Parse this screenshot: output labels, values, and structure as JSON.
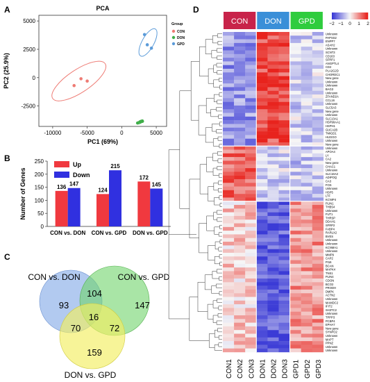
{
  "panels": {
    "a": "A",
    "b": "B",
    "c": "C",
    "d": "D"
  },
  "chart_data": [
    {
      "type": "scatter",
      "title": "PCA",
      "xlabel": "PC1 (69%)",
      "ylabel": "PC2 (25.9%)",
      "xlim": [
        -12000,
        6500
      ],
      "ylim": [
        -4300,
        5500
      ],
      "x_ticks": [
        -10000,
        -5000,
        0,
        5000
      ],
      "y_ticks": [
        5000,
        2500,
        0,
        -2500
      ],
      "x_tick_labels": [
        "-10000",
        "-5000",
        "0",
        "5000"
      ],
      "y_tick_labels": [
        "5000",
        "2500",
        "0",
        "-2500"
      ],
      "legend_title": "Group",
      "legend_position": "right",
      "series": [
        {
          "name": "CON",
          "color": "#ee7b74",
          "points": [
            [
              -6900,
              -700
            ],
            [
              -5900,
              -100
            ],
            [
              -5000,
              -300
            ]
          ],
          "ellipse_center": [
            -6200,
            -300
          ],
          "ellipse_semi_axes": [
            4100,
            1050
          ],
          "ellipse_angle_deg": 22
        },
        {
          "name": "DON",
          "color": "#3fae49",
          "points": [
            [
              2300,
              -4000
            ],
            [
              2700,
              -3900
            ],
            [
              3000,
              -3850
            ]
          ],
          "ellipse_center": [
            2700,
            -3900
          ],
          "ellipse_semi_axes": [
            450,
            130
          ],
          "ellipse_angle_deg": 20
        },
        {
          "name": "GPD",
          "color": "#5b9bd9",
          "points": [
            [
              3300,
              3800
            ],
            [
              3700,
              2900
            ],
            [
              4300,
              2600
            ]
          ],
          "ellipse_center": [
            3800,
            3100
          ],
          "ellipse_semi_axes": [
            1600,
            650
          ],
          "ellipse_angle_deg": 48
        }
      ]
    },
    {
      "type": "bar",
      "ylabel": "Number of Genes",
      "ylim": [
        0,
        250
      ],
      "categories": [
        "CON vs. DON",
        "CON vs. GPD",
        "DON vs. GPD"
      ],
      "legend_position": "top-left",
      "series": [
        {
          "name": "Up",
          "color": "#f0393f",
          "values": [
            136,
            124,
            172
          ]
        },
        {
          "name": "Down",
          "color": "#3030e0",
          "values": [
            147,
            215,
            145
          ]
        }
      ],
      "data_labels": [
        [
          "136",
          "147"
        ],
        [
          "124",
          "215"
        ],
        [
          "172",
          "145"
        ]
      ]
    },
    {
      "type": "venn",
      "sets": [
        {
          "name": "CON vs. DON",
          "color": "#7ea6e6"
        },
        {
          "name": "CON vs. GPD",
          "color": "#6fd46a"
        },
        {
          "name": "DON vs. GPD",
          "color": "#f2ee61"
        }
      ],
      "regions": {
        "only_con_don": 93,
        "only_con_gpd": 147,
        "only_don_gpd": 159,
        "con_don_and_con_gpd": 104,
        "con_don_and_don_gpd": 70,
        "con_gpd_and_don_gpd": 72,
        "all_three": 16
      },
      "region_labels": {
        "only_con_don": "93",
        "only_con_gpd": "147",
        "only_don_gpd": "159",
        "con_don_and_con_gpd": "104",
        "con_don_and_don_gpd": "70",
        "con_gpd_and_don_gpd": "72",
        "all_three": "16"
      }
    },
    {
      "type": "heatmap",
      "groups": [
        {
          "name": "CON",
          "color": "#c8234a"
        },
        {
          "name": "DON",
          "color": "#3a8fd8"
        },
        {
          "name": "GPD",
          "color": "#2fcc3e"
        }
      ],
      "columns": [
        "CON1",
        "CON2",
        "CON3",
        "DON1",
        "DON2",
        "DON3",
        "GPD1",
        "GPD2",
        "GPD3"
      ],
      "color_scale": {
        "min": -2,
        "max": 2,
        "low": "#3b3bd6",
        "mid": "#f6f6f6",
        "high": "#e8231d",
        "tick_labels": [
          "−2",
          "−1",
          "0",
          "1",
          "2"
        ]
      },
      "row_blocks": [
        {
          "rows": 31,
          "values": [
            -1.0,
            -1.0,
            -1.0,
            1.6,
            1.6,
            1.6,
            -0.4,
            -0.4,
            -0.4
          ]
        },
        {
          "rows": 15,
          "values": [
            1.3,
            1.3,
            1.3,
            -0.4,
            -0.4,
            -0.4,
            -0.5,
            -0.5,
            -0.5
          ]
        },
        {
          "rows": 41,
          "values": [
            0.4,
            0.4,
            0.4,
            -1.6,
            -1.6,
            -1.6,
            0.9,
            0.9,
            0.9
          ]
        }
      ],
      "row_labels": [
        "Unknown",
        "PAPSS2",
        "ENPP7",
        "ASAH2",
        "Unknown",
        "SCNT3",
        "CD163",
        "SFRP1",
        "ANGPTL4",
        "CD2",
        "PLA2G2D",
        "CHORDC1",
        "New gene",
        "Unknown",
        "Unknown",
        "BAG3",
        "Unknown",
        "ZFAND2A",
        "CCL16",
        "Unknown",
        "SLC5A3",
        "New gene",
        "Unknown",
        "SLC13A1",
        "HSP90AA1",
        "HSPH1",
        "GUCA2B",
        "TMIGD1",
        "HUGGO",
        "Unknown",
        "New gene",
        "Unknown",
        "APOA4",
        "LY",
        "CA2",
        "New gene",
        "CHAC1",
        "Unknown",
        "SLC16A3",
        "ADIPOQ",
        "CA3",
        "FOS",
        "Unknown",
        "HSP5",
        "LTF",
        "KCNIP4",
        "PLIN1",
        "THBS4",
        "Unknown",
        "FUT1",
        "THRSP",
        "DDAH1",
        "SFRP2",
        "FABP4",
        "RARLX2",
        "BVES",
        "Unknown",
        "Unknown",
        "KCNMA1",
        "Unknown",
        "MMP9",
        "CAP2",
        "PI16",
        "BCAN",
        "MAPK4",
        "TNS1",
        "PLIN4",
        "CDON",
        "BCO2",
        "PRODH",
        "DMPK",
        "ACTN2",
        "Unknown",
        "MAMDC2",
        "IFIT2",
        "SH3TC2",
        "Unknown",
        "TPPP3",
        "PCBP4",
        "EPHA7",
        "New gene",
        "SYNPO2",
        "Unknown",
        "MAPT",
        "PPNZ",
        "Unknown",
        "Unknown"
      ]
    }
  ]
}
